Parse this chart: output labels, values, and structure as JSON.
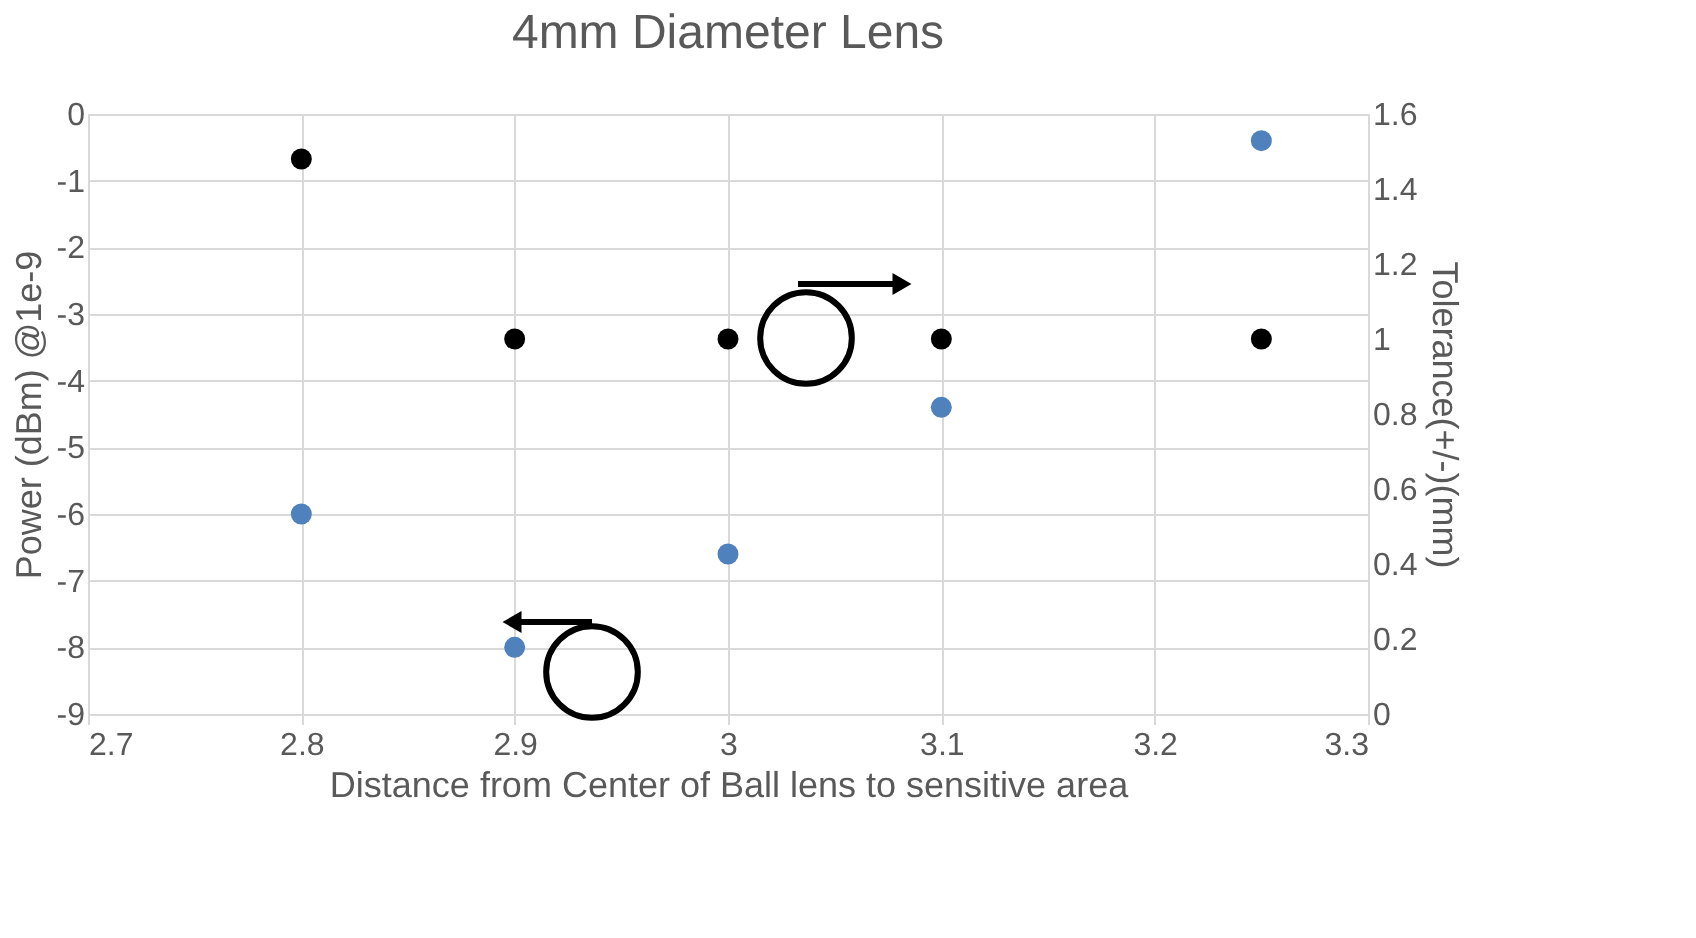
{
  "chart_data": {
    "type": "scatter",
    "title": "4mm Diameter Lens",
    "xlabel": "Distance from Center of Ball lens to sensitive area",
    "ylabel": "Power (dBm) @1e-9",
    "y2label": "Tolerance(+/-)(mm)",
    "x": [
      2.8,
      2.9,
      3.0,
      3.1,
      3.25
    ],
    "series": [
      {
        "color": "#4f81bd",
        "values": [
          -6,
          -8,
          -6.6,
          -4.4,
          -0.4
        ]
      },
      {
        "color": "#000000",
        "values": [
          1.48,
          1.0,
          1.0,
          1.0,
          1.0
        ],
        "axis": "y2"
      }
    ],
    "xlim": [
      2.7,
      3.3
    ],
    "xticks": [
      2.7,
      2.8,
      2.9,
      3,
      3.1,
      3.2,
      3.3
    ],
    "ylim": [
      -9,
      0
    ],
    "yticks": [
      -9,
      -8,
      -7,
      -6,
      -5,
      -4,
      -3,
      -2,
      -1,
      0
    ],
    "y2lim": [
      0,
      1.6
    ],
    "y2ticks": [
      0,
      0.2,
      0.4,
      0.6,
      0.8,
      1,
      1.2,
      1.4,
      1.6
    ],
    "grid": true,
    "marker": "circle"
  }
}
